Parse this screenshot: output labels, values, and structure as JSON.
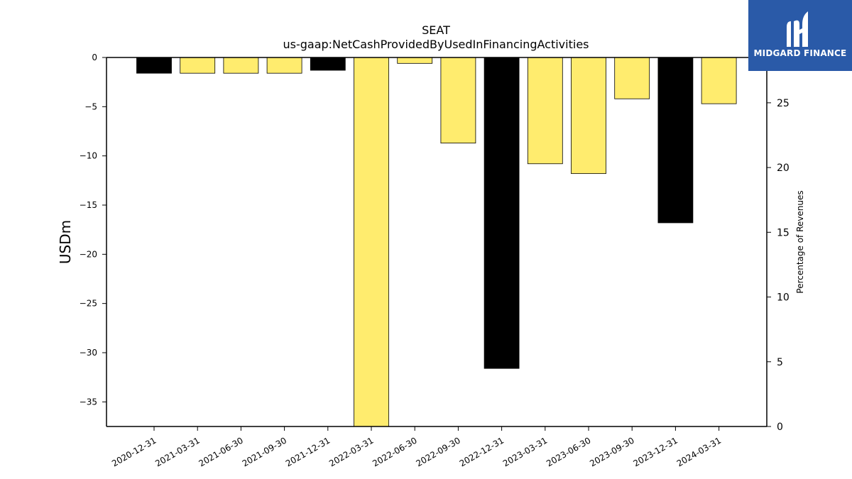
{
  "chart_data": {
    "type": "bar",
    "title": "SEAT",
    "subtitle": "us-gaap:NetCashProvidedByUsedInFinancingActivities",
    "ylabel": "USDm",
    "y2label": "Percentage of Revenues",
    "ylim": [
      -37.5,
      0
    ],
    "y2lim": [
      0,
      28.5
    ],
    "yticks": [
      0,
      -5,
      -10,
      -15,
      -20,
      -25,
      -30,
      -35
    ],
    "y2ticks": [
      0,
      5,
      10,
      15,
      20,
      25
    ],
    "categories": [
      "2020-12-31",
      "2021-03-31",
      "2021-06-30",
      "2021-09-30",
      "2021-12-31",
      "2022-03-31",
      "2022-06-30",
      "2022-09-30",
      "2022-12-31",
      "2023-03-31",
      "2023-06-30",
      "2023-09-30",
      "2023-12-31",
      "2024-03-31"
    ],
    "values": [
      -1.6,
      -1.6,
      -1.6,
      -1.6,
      -1.3,
      -37.5,
      -0.6,
      -8.7,
      -31.6,
      -10.8,
      -11.8,
      -4.2,
      -16.8,
      -4.7
    ],
    "colors": [
      "#000000",
      "#ffec6e",
      "#ffec6e",
      "#ffec6e",
      "#000000",
      "#ffec6e",
      "#ffec6e",
      "#ffec6e",
      "#000000",
      "#ffec6e",
      "#ffec6e",
      "#ffec6e",
      "#000000",
      "#ffec6e"
    ],
    "grid": false
  },
  "logo": {
    "text": "MIDGARD FINANCE",
    "background": "#2a5aa8"
  }
}
